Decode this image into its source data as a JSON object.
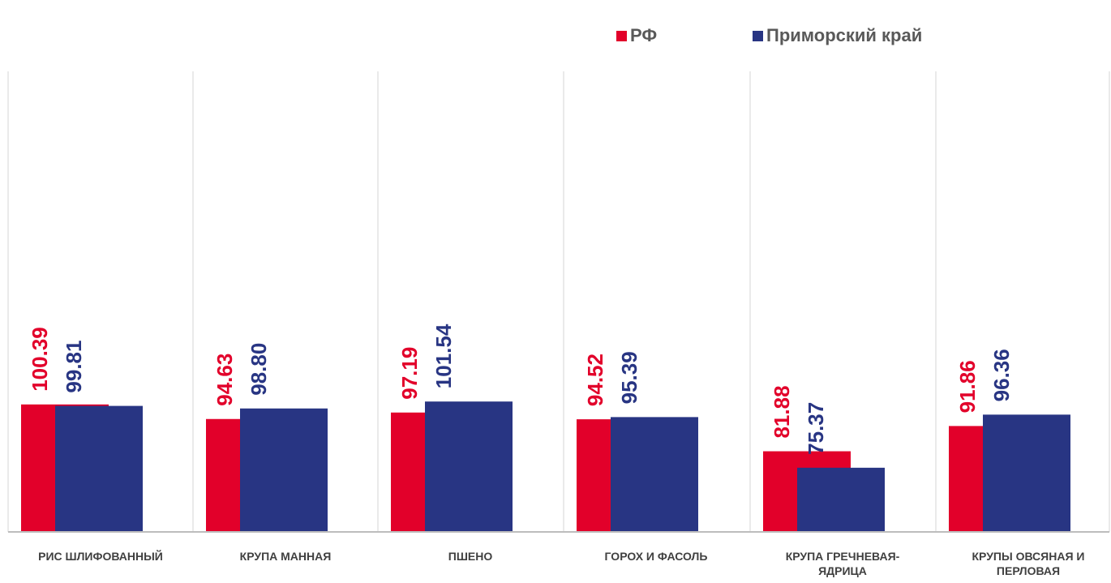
{
  "chart_data": {
    "type": "bar",
    "categories": [
      [
        "РИС ШЛИФОВАННЫЙ"
      ],
      [
        "КРУПА МАННАЯ"
      ],
      [
        "ПШЕНО"
      ],
      [
        "ГОРОХ И ФАСОЛЬ"
      ],
      [
        "КРУПА ГРЕЧНЕВАЯ-",
        "ЯДРИЦА"
      ],
      [
        "КРУПЫ ОВСЯНАЯ И",
        "ПЕРЛОВАЯ"
      ]
    ],
    "series": [
      {
        "name": "РФ",
        "color": "#e2002a",
        "values": [
          100.39,
          94.63,
          97.19,
          94.52,
          81.88,
          91.86
        ],
        "labels": [
          "100.39",
          "94.63",
          "97.19",
          "94.52",
          "81.88",
          "91.86"
        ]
      },
      {
        "name": "Приморский край",
        "color": "#283583",
        "values": [
          99.81,
          98.8,
          101.54,
          95.39,
          75.37,
          96.36
        ],
        "labels": [
          "99.81",
          "98.80",
          "101.54",
          "95.39",
          "75.37",
          "96.36"
        ]
      }
    ],
    "legend": "top-right",
    "grid": true,
    "title": "",
    "xlabel": "",
    "ylabel": ""
  }
}
